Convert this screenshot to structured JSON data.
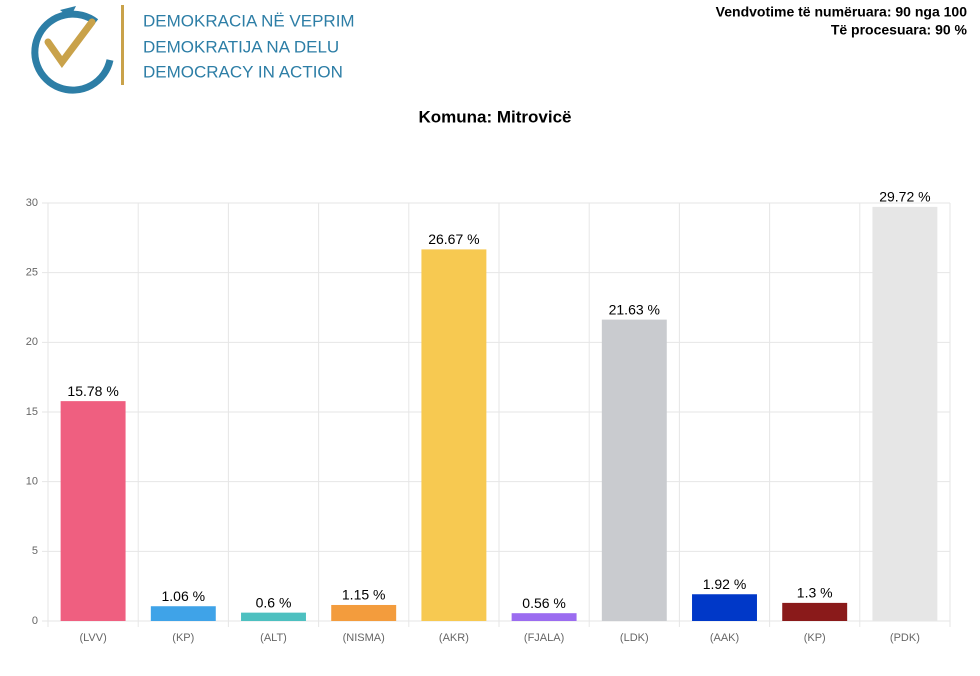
{
  "header": {
    "logo_lines": [
      "DEMOKRACIA NË VEPRIM",
      "DEMOKRATIJA NA DELU",
      "DEMOCRACY IN ACTION"
    ],
    "stats": [
      "Vendvotime të numëruara: 90 nga 100",
      "Të procesuara: 90 %"
    ]
  },
  "chart_data": {
    "type": "bar",
    "title": "Komuna: Mitrovicë",
    "categories": [
      "(LVV)",
      "(KP)",
      "(ALT)",
      "(NISMA)",
      "(AKR)",
      "(FJALA)",
      "(LDK)",
      "(AAK)",
      "(KP)",
      "(PDK)"
    ],
    "values": [
      15.78,
      1.06,
      0.6,
      1.15,
      26.67,
      0.56,
      21.63,
      1.92,
      1.3,
      29.72
    ],
    "value_labels": [
      "15.78 %",
      "1.06 %",
      "0.6 %",
      "1.15 %",
      "26.67 %",
      "0.56 %",
      "21.63 %",
      "1.92 %",
      "1.3 %",
      "29.72 %"
    ],
    "colors": [
      "#ef5f80",
      "#3fa3e8",
      "#4dc0c0",
      "#f39c3d",
      "#f7c951",
      "#9b6cf0",
      "#c9cbcf",
      "#0038c8",
      "#8a1a1a",
      "#e6e6e6"
    ],
    "ylim": [
      0,
      30
    ],
    "yticks": [
      0,
      5,
      10,
      15,
      20,
      25,
      30
    ],
    "grid": true
  }
}
